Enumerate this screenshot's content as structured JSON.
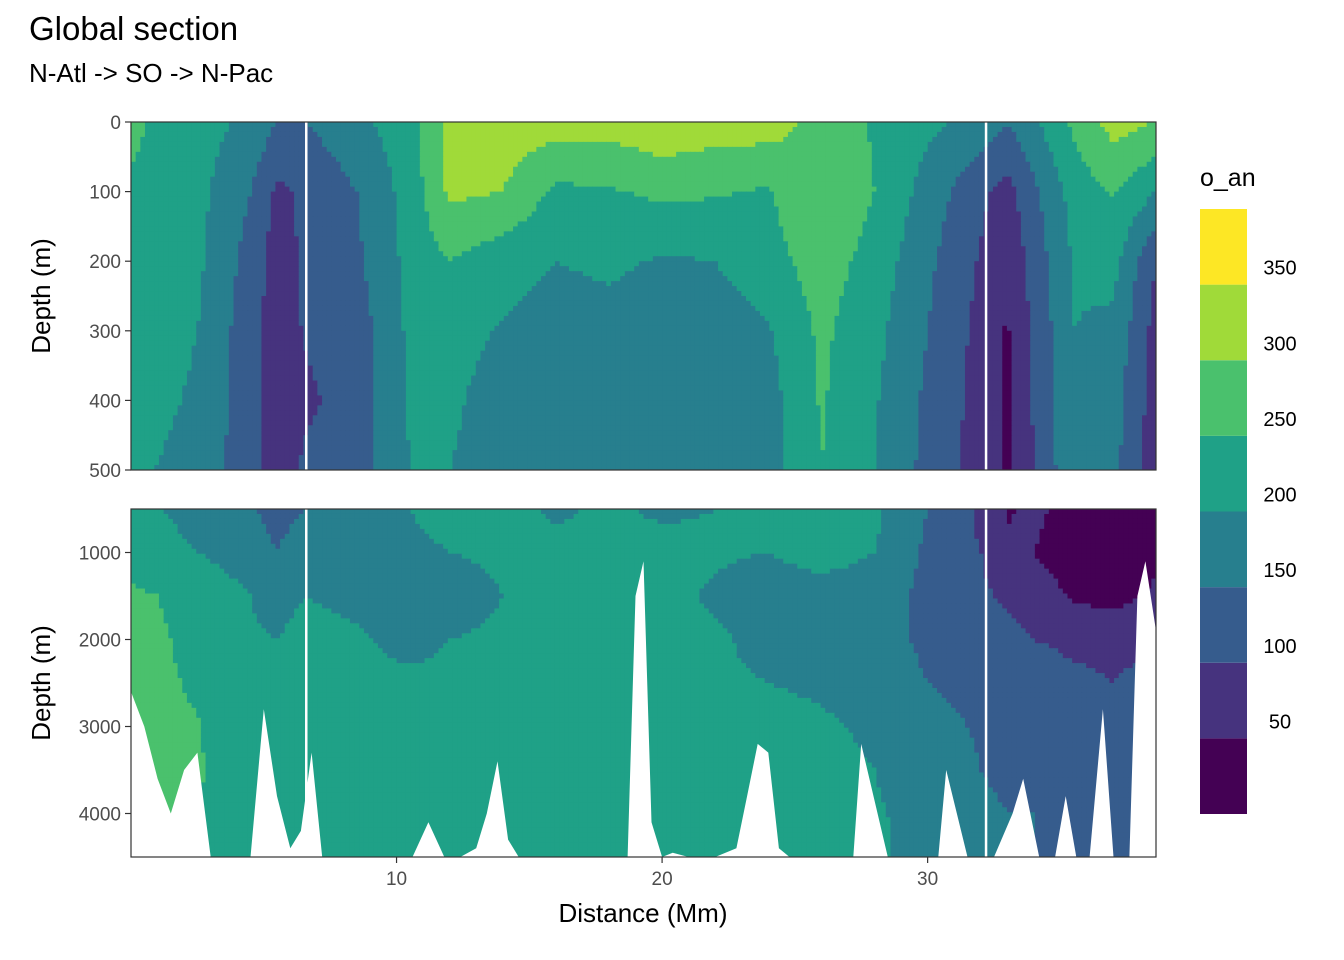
{
  "title": "Global section",
  "subtitle": "N-Atl -> SO -> N-Pac",
  "chart_data": {
    "type": "heatmap",
    "xlabel": "Distance (Mm)",
    "ylabel": "Depth (m)",
    "xlim": [
      0,
      38.6
    ],
    "x_ticks": [
      10,
      20,
      30
    ],
    "section_markers_x": [
      6.6,
      32.2
    ],
    "panels": [
      {
        "name": "upper",
        "ylim": [
          500,
          0
        ],
        "y_ticks": [
          0,
          100,
          200,
          300,
          400,
          500
        ]
      },
      {
        "name": "lower",
        "ylim": [
          4500,
          500
        ],
        "y_ticks": [
          1000,
          2000,
          3000,
          4000
        ]
      }
    ],
    "legend": {
      "title": "o_an",
      "placement": "right",
      "bins": [
        {
          "low": 0,
          "high": 50,
          "color": "#440154"
        },
        {
          "low": 50,
          "high": 100,
          "color": "#46337E"
        },
        {
          "low": 100,
          "high": 150,
          "color": "#365C8D"
        },
        {
          "low": 150,
          "high": 200,
          "color": "#277F8E"
        },
        {
          "low": 200,
          "high": 250,
          "color": "#1FA187"
        },
        {
          "low": 250,
          "high": 300,
          "color": "#4AC16D"
        },
        {
          "low": 300,
          "high": 350,
          "color": "#A0DA39"
        },
        {
          "low": 350,
          "high": 400,
          "color": "#FDE725"
        }
      ],
      "labels": [
        "50",
        "100",
        "150",
        "200",
        "250",
        "300",
        "350"
      ]
    },
    "upper_field": {
      "x": [
        0,
        2.5,
        4.5,
        5.5,
        6.6,
        8.5,
        10.5,
        12,
        14,
        16,
        18,
        20,
        22,
        24,
        26,
        28,
        30,
        32,
        33,
        34,
        35.5,
        37,
        38.6
      ],
      "depth": [
        0,
        100,
        200,
        300,
        400,
        500
      ],
      "values": [
        [
          260,
          220,
          190,
          150,
          150,
          185,
          230,
          320,
          330,
          320,
          320,
          340,
          325,
          325,
          280,
          245,
          210,
          185,
          150,
          190,
          260,
          320,
          300
        ],
        [
          245,
          215,
          150,
          90,
          110,
          150,
          220,
          310,
          300,
          240,
          245,
          260,
          255,
          245,
          300,
          250,
          180,
          110,
          80,
          140,
          220,
          255,
          200
        ],
        [
          240,
          210,
          130,
          75,
          110,
          140,
          215,
          250,
          220,
          200,
          210,
          195,
          200,
          230,
          275,
          230,
          160,
          95,
          60,
          120,
          205,
          215,
          100
        ],
        [
          225,
          200,
          120,
          75,
          105,
          125,
          210,
          220,
          195,
          175,
          180,
          170,
          175,
          195,
          260,
          215,
          150,
          85,
          45,
          110,
          200,
          190,
          80
        ],
        [
          215,
          195,
          115,
          70,
          90,
          125,
          205,
          210,
          175,
          170,
          170,
          165,
          170,
          180,
          255,
          205,
          140,
          80,
          40,
          105,
          195,
          170,
          75
        ],
        [
          205,
          190,
          115,
          75,
          110,
          130,
          200,
          200,
          175,
          170,
          170,
          170,
          170,
          180,
          250,
          200,
          135,
          80,
          40,
          100,
          190,
          165,
          70
        ]
      ]
    },
    "lower_field": {
      "x": [
        0,
        2.5,
        4.5,
        5.5,
        6.6,
        8.5,
        10.5,
        12,
        14,
        16,
        18,
        20,
        22,
        24,
        26,
        28,
        30,
        32,
        33,
        34,
        35.5,
        37,
        38.6
      ],
      "depth": [
        500,
        1000,
        1500,
        2000,
        2500,
        3000,
        3500,
        4000,
        4500
      ],
      "values": [
        [
          215,
          185,
          155,
          130,
          150,
          160,
          200,
          225,
          210,
          195,
          205,
          195,
          200,
          205,
          220,
          210,
          150,
          90,
          45,
          60,
          30,
          25,
          40
        ],
        [
          225,
          200,
          175,
          150,
          185,
          175,
          185,
          200,
          205,
          210,
          205,
          210,
          205,
          200,
          215,
          200,
          140,
          100,
          60,
          50,
          30,
          20,
          35
        ],
        [
          260,
          235,
          200,
          185,
          200,
          190,
          175,
          185,
          200,
          205,
          210,
          210,
          195,
          180,
          185,
          180,
          135,
          110,
          90,
          70,
          45,
          30,
          60
        ],
        [
          265,
          240,
          205,
          200,
          215,
          205,
          185,
          200,
          205,
          210,
          215,
          210,
          205,
          190,
          175,
          170,
          140,
          125,
          115,
          100,
          90,
          90,
          100
        ],
        [
          265,
          245,
          210,
          205,
          215,
          215,
          210,
          210,
          210,
          212,
          215,
          210,
          205,
          200,
          195,
          180,
          150,
          135,
          130,
          125,
          110,
          100,
          110
        ],
        [
          262,
          252,
          212,
          208,
          212,
          222,
          212,
          210,
          210,
          212,
          215,
          210,
          210,
          210,
          205,
          195,
          165,
          145,
          140,
          140,
          135,
          130,
          135
        ],
        [
          258,
          256,
          214,
          208,
          220,
          218,
          212,
          212,
          212,
          214,
          215,
          212,
          212,
          210,
          208,
          200,
          175,
          150,
          145,
          145,
          140,
          140,
          140
        ],
        [
          255,
          250,
          215,
          210,
          225,
          215,
          215,
          212,
          214,
          214,
          215,
          212,
          212,
          212,
          208,
          205,
          185,
          155,
          150,
          150,
          145,
          145,
          145
        ],
        [
          250,
          245,
          215,
          210,
          215,
          215,
          215,
          212,
          214,
          214,
          215,
          212,
          212,
          212,
          208,
          205,
          190,
          160,
          150,
          150,
          145,
          145,
          145
        ]
      ]
    },
    "bathymetry": {
      "x": [
        0,
        0.5,
        1.0,
        1.5,
        2.0,
        2.5,
        3.0,
        3.5,
        4.0,
        4.5,
        5.0,
        5.5,
        6.0,
        6.4,
        6.8,
        7.2,
        8,
        9,
        10,
        10.6,
        11.2,
        11.8,
        12.4,
        13,
        13.4,
        13.8,
        14.2,
        14.6,
        15,
        16,
        17,
        18,
        18.7,
        19.0,
        19.3,
        19.6,
        20.0,
        20.4,
        21,
        22,
        22.8,
        23.2,
        23.6,
        24.0,
        24.4,
        24.8,
        25.5,
        26.5,
        27.2,
        27.5,
        28.5,
        29.5,
        30.4,
        30.7,
        31.5,
        32.5,
        33.2,
        33.6,
        34.2,
        34.8,
        35.2,
        35.6,
        36.1,
        36.6,
        37.0,
        37.3,
        37.6,
        37.9,
        38.2,
        38.6
      ],
      "depth": [
        2600,
        3000,
        3600,
        4000,
        3500,
        3300,
        4500,
        4500,
        4500,
        4500,
        2800,
        3800,
        4400,
        4200,
        3300,
        4500,
        4500,
        4500,
        4500,
        4500,
        4100,
        4500,
        4500,
        4400,
        4000,
        3400,
        4300,
        4500,
        4500,
        4500,
        4500,
        4500,
        4500,
        1500,
        1100,
        4100,
        4500,
        4450,
        4500,
        4500,
        4400,
        3800,
        3200,
        3300,
        4400,
        4500,
        4500,
        4500,
        4500,
        3200,
        4500,
        4500,
        4500,
        3500,
        4500,
        4500,
        4000,
        3600,
        4500,
        4500,
        3800,
        4500,
        4500,
        2800,
        4500,
        4500,
        4500,
        1500,
        1100,
        1900
      ]
    }
  }
}
